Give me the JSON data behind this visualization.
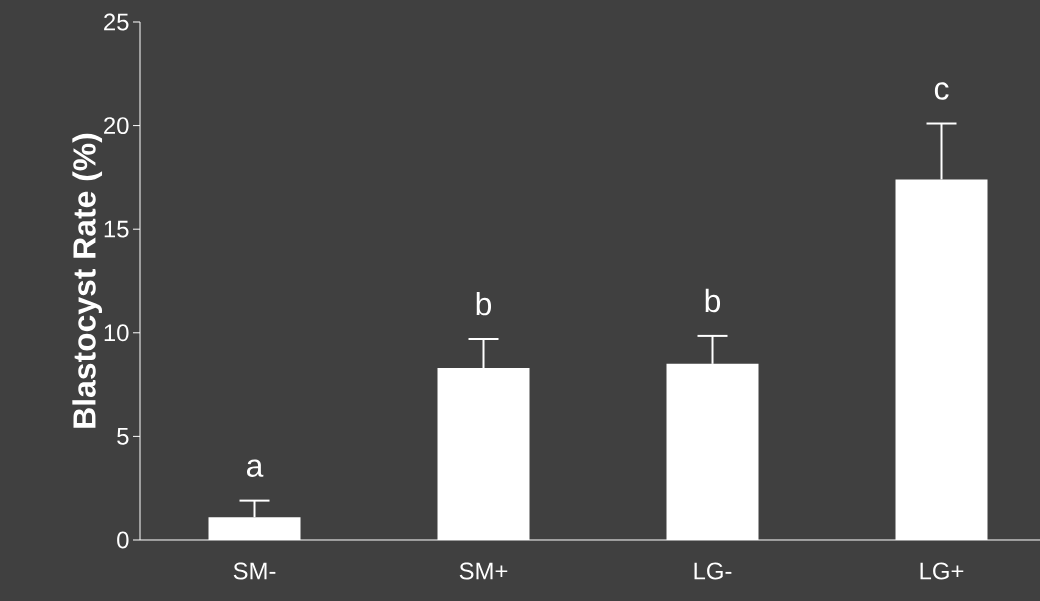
{
  "chart_data": {
    "type": "bar",
    "ylabel": "Blastocyst Rate (%)",
    "categories": [
      "SM-",
      "SM+",
      "LG-",
      "LG+"
    ],
    "values": [
      1.1,
      8.3,
      8.5,
      17.4
    ],
    "color": "#ffffff",
    "errors": [
      [
        1.1,
        1.9
      ],
      [
        8.3,
        9.7
      ],
      [
        8.5,
        9.85
      ],
      [
        17.4,
        20.1
      ]
    ],
    "ylim": [
      0,
      25
    ],
    "yticks": [
      0,
      5,
      10,
      15,
      20,
      25
    ],
    "grid": false,
    "annotations": [
      "a",
      "b",
      "b",
      "c"
    ]
  }
}
